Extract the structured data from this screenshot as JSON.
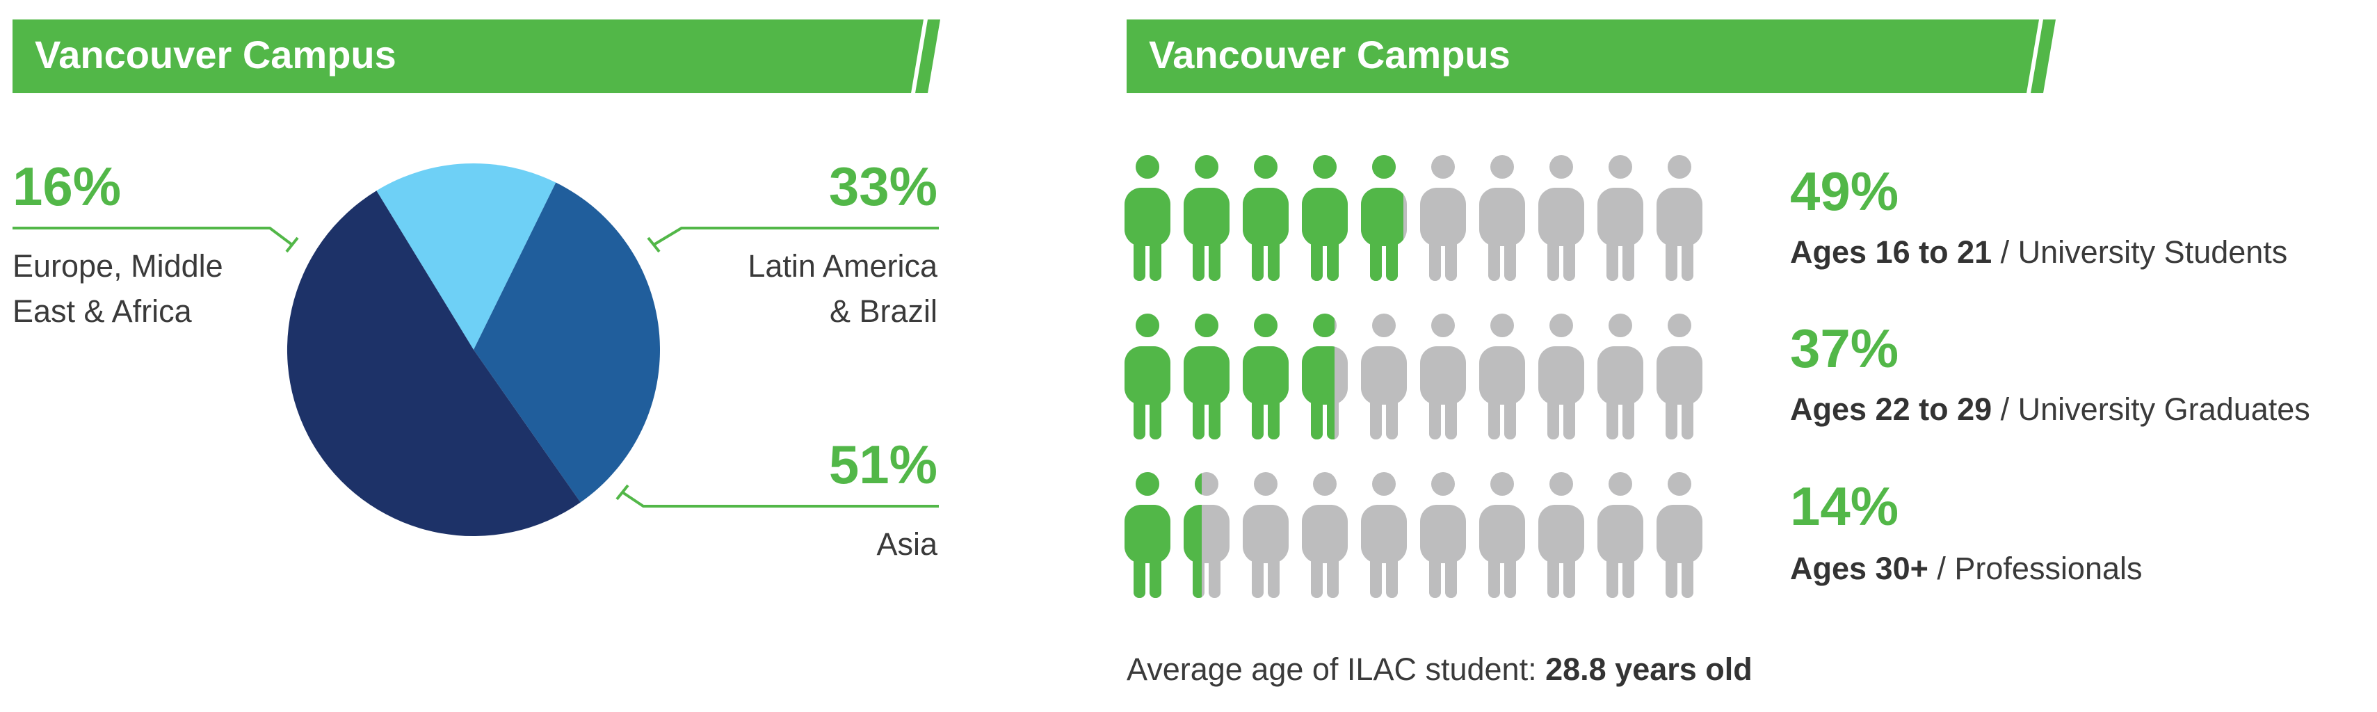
{
  "colors": {
    "green": "#52b748",
    "gray": "#bdbdbe",
    "text": "#3a3a3a",
    "dark_text": "#333333",
    "pie_light": "#6ed0f6",
    "pie_mid": "#205e9c",
    "pie_dark": "#1d3268",
    "header_text": "#ffffff"
  },
  "left_panel": {
    "header": "Vancouver Campus",
    "callouts": [
      {
        "value": "16%",
        "lines": [
          "Europe, Middle",
          "East & Africa"
        ]
      },
      {
        "value": "33%",
        "lines": [
          "Latin America",
          "& Brazil"
        ]
      },
      {
        "value": "51%",
        "lines": [
          "Asia"
        ]
      }
    ]
  },
  "right_panel": {
    "header": "Vancouver Campus",
    "rows": [
      {
        "value": "49%",
        "label_bold": "Ages 16 to 21",
        "label_rest": " / University Students"
      },
      {
        "value": "37%",
        "label_bold": "Ages 22 to 29",
        "label_rest": " / University Graduates"
      },
      {
        "value": "14%",
        "label_bold": "Ages 30+",
        "label_rest": " / Professionals"
      }
    ],
    "average_label": "Average age of ILAC student: ",
    "average_value": "28.8 years old"
  },
  "chart_data": [
    {
      "type": "pie",
      "title": "Vancouver Campus",
      "slices": [
        {
          "label": "Europe, Middle East & Africa",
          "value": 16,
          "color": "#6ed0f6"
        },
        {
          "label": "Latin America & Brazil",
          "value": 33,
          "color": "#205e9c"
        },
        {
          "label": "Asia",
          "value": 51,
          "color": "#1d3268"
        }
      ]
    },
    {
      "type": "bar",
      "subtype": "pictograph",
      "title": "Vancouver Campus",
      "icons_per_row": 10,
      "categories": [
        "Ages 16 to 21",
        "Ages 22 to 29",
        "Ages 30+"
      ],
      "series": [
        {
          "values": [
            49,
            37,
            14
          ]
        }
      ]
    }
  ]
}
